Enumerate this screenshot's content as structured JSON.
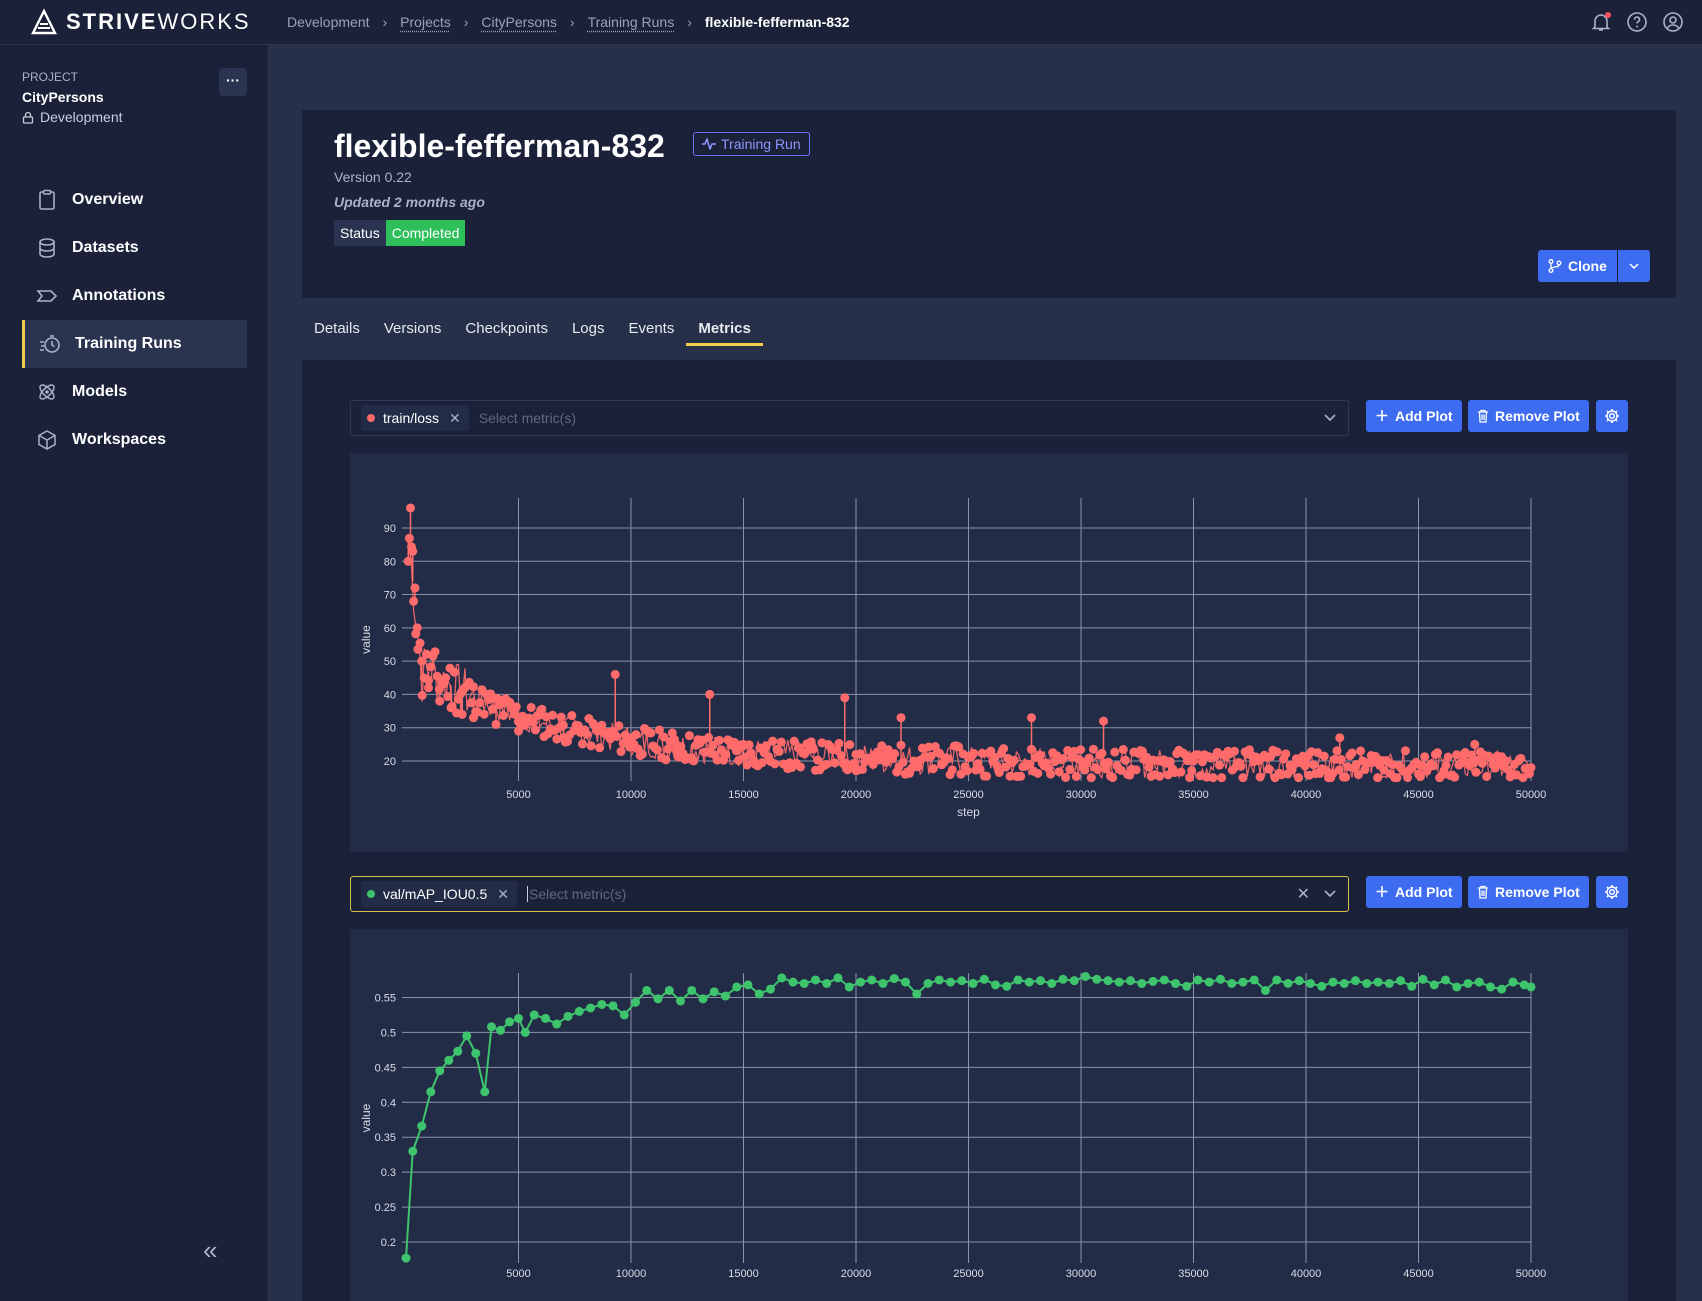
{
  "brand": {
    "name_bold": "STRIVE",
    "name_thin": "WORKS"
  },
  "breadcrumb": [
    "Development",
    "Projects",
    "CityPersons",
    "Training Runs",
    "flexible-fefferman-832"
  ],
  "sidebar": {
    "project_label": "PROJECT",
    "project_name": "CityPersons",
    "project_env": "Development",
    "more_label": "···",
    "collapse_label": "«",
    "items": [
      {
        "label": "Overview",
        "icon": "clipboard-icon"
      },
      {
        "label": "Datasets",
        "icon": "database-icon"
      },
      {
        "label": "Annotations",
        "icon": "annotation-icon"
      },
      {
        "label": "Training Runs",
        "icon": "timer-icon",
        "active": true
      },
      {
        "label": "Models",
        "icon": "atom-icon"
      },
      {
        "label": "Workspaces",
        "icon": "cube-icon"
      }
    ]
  },
  "header": {
    "title": "flexible-fefferman-832",
    "badge": "Training Run",
    "version": "Version 0.22",
    "updated": "Updated 2 months ago",
    "status_label": "Status",
    "status_value": "Completed",
    "clone_label": "Clone"
  },
  "tabs": [
    "Details",
    "Versions",
    "Checkpoints",
    "Logs",
    "Events",
    "Metrics"
  ],
  "active_tab": "Metrics",
  "plots": [
    {
      "metric": "train/loss",
      "placeholder": "Select metric(s)",
      "add_label": "Add Plot",
      "remove_label": "Remove Plot",
      "color": "#ff6b6b"
    },
    {
      "metric": "val/mAP_IOU0.5",
      "placeholder": "Select metric(s)",
      "add_label": "Add Plot",
      "remove_label": "Remove Plot",
      "color": "#3ec46d"
    }
  ],
  "chart_data": [
    {
      "type": "scatter",
      "title": "train/loss",
      "xlabel": "step",
      "ylabel": "value",
      "xlim": [
        0,
        50000
      ],
      "ylim": [
        14,
        99
      ],
      "xticks": [
        5000,
        10000,
        15000,
        20000,
        25000,
        30000,
        35000,
        40000,
        45000,
        50000
      ],
      "yticks": [
        20,
        30,
        40,
        50,
        60,
        70,
        80,
        90
      ],
      "series": [
        {
          "name": "train/loss",
          "color": "#ff6b6b",
          "x": [
            100,
            200,
            300,
            400,
            500,
            700,
            1000,
            1500,
            2000,
            2500,
            3000,
            4000,
            5000,
            7000,
            9300,
            10000,
            12000,
            13500,
            15000,
            17500,
            19500,
            20000,
            22000,
            25000,
            27800,
            30000,
            31000,
            35000,
            40000,
            41500,
            45000,
            47500,
            50000
          ],
          "y": [
            80,
            96,
            83,
            72,
            60,
            50,
            42,
            38,
            36,
            34,
            33,
            31,
            29,
            27,
            46,
            27,
            25,
            40,
            25,
            24,
            39,
            22,
            33,
            21,
            33,
            20,
            32,
            20,
            19,
            27,
            19,
            25,
            18
          ]
        }
      ]
    },
    {
      "type": "line",
      "title": "val/mAP_IOU0.5",
      "xlabel": "step",
      "ylabel": "value",
      "xlim": [
        0,
        50000
      ],
      "ylim": [
        0.17,
        0.585
      ],
      "xticks": [
        5000,
        10000,
        15000,
        20000,
        25000,
        30000,
        35000,
        40000,
        45000,
        50000
      ],
      "yticks": [
        0.2,
        0.25,
        0.3,
        0.35,
        0.4,
        0.45,
        0.5,
        0.55
      ],
      "series": [
        {
          "name": "val/mAP_IOU0.5",
          "color": "#3ec46d",
          "x": [
            0,
            300,
            700,
            1100,
            1500,
            1900,
            2300,
            2700,
            3100,
            3500,
            3800,
            4200,
            4600,
            5000,
            5300,
            5700,
            6200,
            6700,
            7200,
            7700,
            8200,
            8700,
            9200,
            9700,
            10200,
            10700,
            11200,
            11700,
            12200,
            12700,
            13200,
            13700,
            14200,
            14700,
            15200,
            15700,
            16200,
            16700,
            17200,
            17700,
            18200,
            18700,
            19200,
            19700,
            20200,
            20700,
            21200,
            21700,
            22200,
            22700,
            23200,
            23700,
            24200,
            24700,
            25200,
            25700,
            26200,
            26700,
            27200,
            27700,
            28200,
            28700,
            29200,
            29700,
            30200,
            30700,
            31200,
            31700,
            32200,
            32700,
            33200,
            33700,
            34200,
            34700,
            35200,
            35700,
            36200,
            36700,
            37200,
            37700,
            38200,
            38700,
            39200,
            39700,
            40200,
            40700,
            41200,
            41700,
            42200,
            42700,
            43200,
            43700,
            44200,
            44700,
            45200,
            45700,
            46200,
            46700,
            47200,
            47700,
            48200,
            48700,
            49200,
            49700,
            50000
          ],
          "y": [
            0.177,
            0.33,
            0.366,
            0.415,
            0.445,
            0.46,
            0.473,
            0.495,
            0.47,
            0.415,
            0.508,
            0.503,
            0.515,
            0.52,
            0.5,
            0.525,
            0.52,
            0.512,
            0.523,
            0.53,
            0.535,
            0.54,
            0.538,
            0.525,
            0.543,
            0.56,
            0.548,
            0.56,
            0.545,
            0.56,
            0.548,
            0.558,
            0.552,
            0.565,
            0.568,
            0.555,
            0.562,
            0.578,
            0.572,
            0.57,
            0.575,
            0.57,
            0.578,
            0.565,
            0.572,
            0.575,
            0.57,
            0.577,
            0.572,
            0.555,
            0.57,
            0.575,
            0.572,
            0.574,
            0.57,
            0.576,
            0.568,
            0.566,
            0.575,
            0.572,
            0.574,
            0.57,
            0.576,
            0.574,
            0.58,
            0.576,
            0.574,
            0.572,
            0.574,
            0.57,
            0.573,
            0.575,
            0.57,
            0.566,
            0.575,
            0.572,
            0.576,
            0.57,
            0.572,
            0.575,
            0.56,
            0.575,
            0.57,
            0.574,
            0.57,
            0.566,
            0.572,
            0.57,
            0.574,
            0.57,
            0.572,
            0.57,
            0.574,
            0.566,
            0.576,
            0.568,
            0.575,
            0.565,
            0.57,
            0.572,
            0.565,
            0.562,
            0.572,
            0.568,
            0.565
          ]
        }
      ]
    }
  ]
}
